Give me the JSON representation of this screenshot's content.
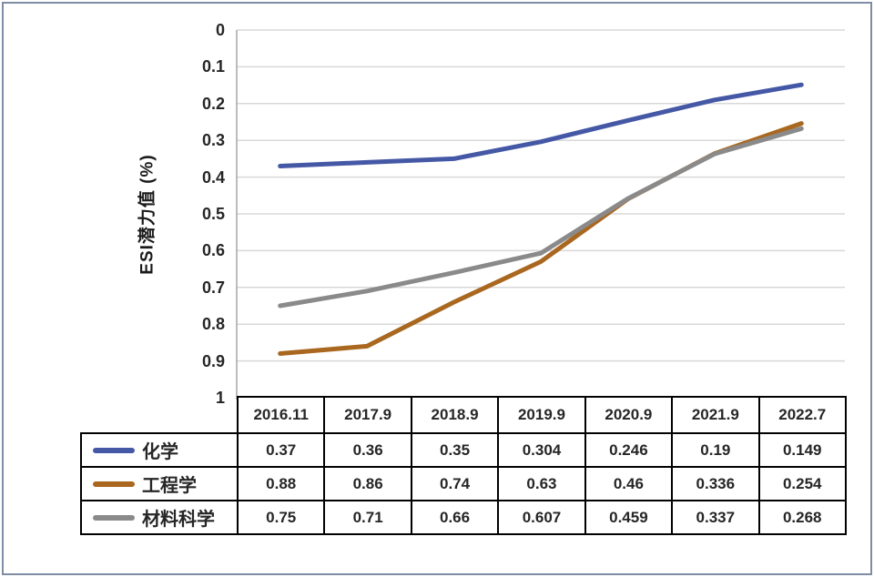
{
  "chart": {
    "y_axis_title": "ESI潜力值 (%)"
  },
  "chart_data": {
    "type": "line",
    "title": "",
    "xlabel": "",
    "ylabel": "ESI潜力值 (%)",
    "categories": [
      "2016.11",
      "2017.9",
      "2018.9",
      "2019.9",
      "2020.9",
      "2021.9",
      "2022.7"
    ],
    "series": [
      {
        "name": "化学",
        "color": "#4458A5",
        "values": [
          0.37,
          0.36,
          0.35,
          0.304,
          0.246,
          0.19,
          0.149
        ]
      },
      {
        "name": "工程学",
        "color": "#A9671F",
        "values": [
          0.88,
          0.86,
          0.74,
          0.63,
          0.46,
          0.336,
          0.254
        ]
      },
      {
        "name": "材料科学",
        "color": "#8A8A8A",
        "values": [
          0.75,
          0.71,
          0.66,
          0.607,
          0.459,
          0.337,
          0.268
        ]
      }
    ],
    "y_axis": {
      "min": 0,
      "max": 1,
      "step": 0.1,
      "inverted": true,
      "ticks": [
        "0",
        "0.1",
        "0.2",
        "0.3",
        "0.4",
        "0.5",
        "0.6",
        "0.7",
        "0.8",
        "0.9",
        "1"
      ]
    },
    "grid": true,
    "legend_position": "table-left",
    "colors": {
      "gridline": "#d8d8d8",
      "axis_line": "#a6a6a6",
      "frame_border": "#7e8ca4",
      "table_border": "#000000",
      "text": "#262626"
    }
  }
}
